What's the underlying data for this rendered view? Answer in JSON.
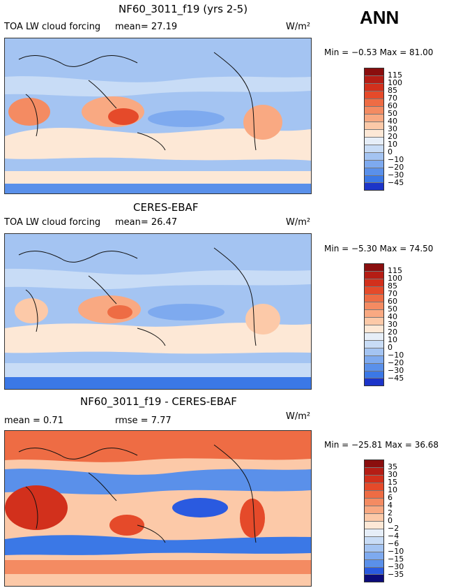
{
  "header": {
    "season": "ANN"
  },
  "units": "W/m²",
  "panels": [
    {
      "title": "NF60_3011_f19 (yrs 2-5)",
      "variable": "TOA LW cloud forcing",
      "stat": "mean=  27.19",
      "minmax": "Min =   −0.53  Max =   81.00",
      "palette": [
        "#0b0b7a",
        "#1c34c9",
        "#2a5ae0",
        "#3b78e6",
        "#5a90ea",
        "#7eaaef",
        "#a4c4f2",
        "#c8dcf6",
        "#e6eef8",
        "#fde8d6",
        "#fcc9a8",
        "#f9a982",
        "#f48b62",
        "#ee6c44",
        "#e54a2a",
        "#d2301c",
        "#b51d15",
        "#8a0e0e"
      ],
      "ticks": [
        "115",
        "100",
        "85",
        "70",
        "60",
        "50",
        "40",
        "30",
        "20",
        "10",
        "0",
        "−10",
        "−20",
        "−30",
        "−45"
      ]
    },
    {
      "title": "CERES-EBAF",
      "variable": "TOA LW cloud forcing",
      "stat": "mean=  26.47",
      "minmax": "Min =   −5.30  Max =   74.50",
      "palette": [
        "#0b0b7a",
        "#1c34c9",
        "#2a5ae0",
        "#3b78e6",
        "#5a90ea",
        "#7eaaef",
        "#a4c4f2",
        "#c8dcf6",
        "#e6eef8",
        "#fde8d6",
        "#fcc9a8",
        "#f9a982",
        "#f48b62",
        "#ee6c44",
        "#e54a2a",
        "#d2301c",
        "#b51d15",
        "#8a0e0e"
      ],
      "ticks": [
        "115",
        "100",
        "85",
        "70",
        "60",
        "50",
        "40",
        "30",
        "20",
        "10",
        "0",
        "−10",
        "−20",
        "−30",
        "−45"
      ]
    },
    {
      "title": "NF60_3011_f19 - CERES-EBAF",
      "variable": "mean =   0.71",
      "stat": "rmse =   7.77",
      "minmax": "Min =  −25.81  Max =   36.68",
      "palette": [
        "#0b0b7a",
        "#1c34c9",
        "#2a5ae0",
        "#3b78e6",
        "#5a90ea",
        "#7eaaef",
        "#a4c4f2",
        "#c8dcf6",
        "#e6eef8",
        "#fde8d6",
        "#fcc9a8",
        "#f9a982",
        "#f48b62",
        "#ee6c44",
        "#e54a2a",
        "#d2301c",
        "#b51d15",
        "#8a0e0e"
      ],
      "ticks": [
        "35",
        "30",
        "15",
        "10",
        "6",
        "4",
        "2",
        "0",
        "−2",
        "−4",
        "−6",
        "−10",
        "−15",
        "−30",
        "−35"
      ]
    }
  ],
  "chart_data": [
    {
      "type": "heatmap",
      "title": "NF60_3011_f19 (yrs 2-5)",
      "field": "TOA LW cloud forcing",
      "units": "W/m2",
      "mean": 27.19,
      "min": -0.53,
      "max": 81.0,
      "levels": [
        115,
        100,
        85,
        70,
        60,
        50,
        40,
        30,
        20,
        10,
        0,
        -10,
        -20,
        -30,
        -45
      ]
    },
    {
      "type": "heatmap",
      "title": "CERES-EBAF",
      "field": "TOA LW cloud forcing",
      "units": "W/m2",
      "mean": 26.47,
      "min": -5.3,
      "max": 74.5,
      "levels": [
        115,
        100,
        85,
        70,
        60,
        50,
        40,
        30,
        20,
        10,
        0,
        -10,
        -20,
        -30,
        -45
      ]
    },
    {
      "type": "heatmap",
      "title": "NF60_3011_f19 - CERES-EBAF",
      "units": "W/m2",
      "mean": 0.71,
      "rmse": 7.77,
      "min": -25.81,
      "max": 36.68,
      "levels": [
        35,
        30,
        15,
        10,
        6,
        4,
        2,
        0,
        -2,
        -4,
        -6,
        -10,
        -15,
        -30,
        -35
      ]
    }
  ]
}
